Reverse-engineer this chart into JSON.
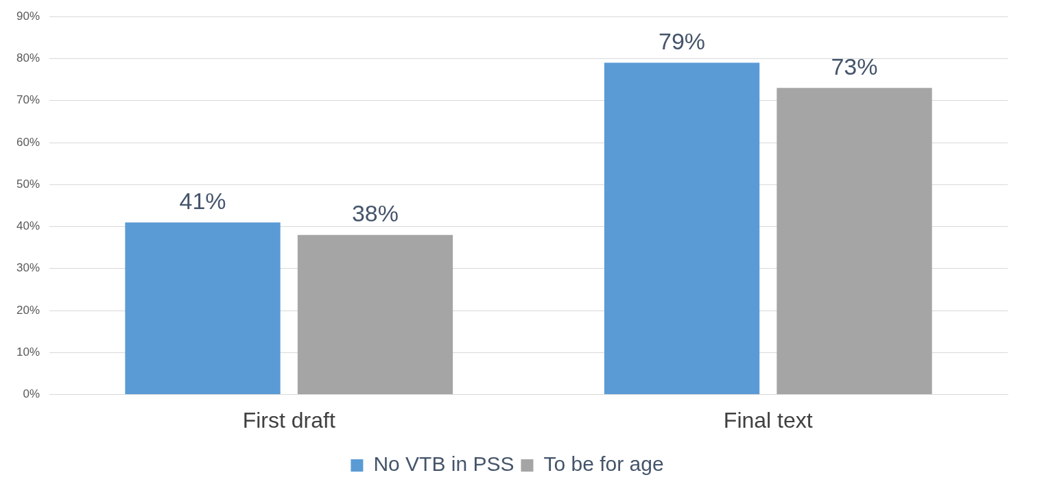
{
  "chart_data": {
    "type": "bar",
    "categories": [
      "First draft",
      "Final text"
    ],
    "series": [
      {
        "name": "No VTB in PSS",
        "color": "#5b9bd5",
        "values": [
          41,
          79
        ],
        "value_labels": [
          "41%",
          "79%"
        ]
      },
      {
        "name": "To be for age",
        "color": "#a5a5a5",
        "values": [
          38,
          73
        ],
        "value_labels": [
          "38%",
          "73%"
        ]
      }
    ],
    "ylim": [
      0,
      90
    ],
    "yticks": [
      {
        "value": 0,
        "label": "0%"
      },
      {
        "value": 10,
        "label": "10%"
      },
      {
        "value": 20,
        "label": "20%"
      },
      {
        "value": 30,
        "label": "30%"
      },
      {
        "value": 40,
        "label": "40%"
      },
      {
        "value": 50,
        "label": "50%"
      },
      {
        "value": 60,
        "label": "60%"
      },
      {
        "value": 70,
        "label": "70%"
      },
      {
        "value": 80,
        "label": "80%"
      },
      {
        "value": 90,
        "label": "90%"
      }
    ],
    "grid": "y",
    "legend": "bottom"
  }
}
